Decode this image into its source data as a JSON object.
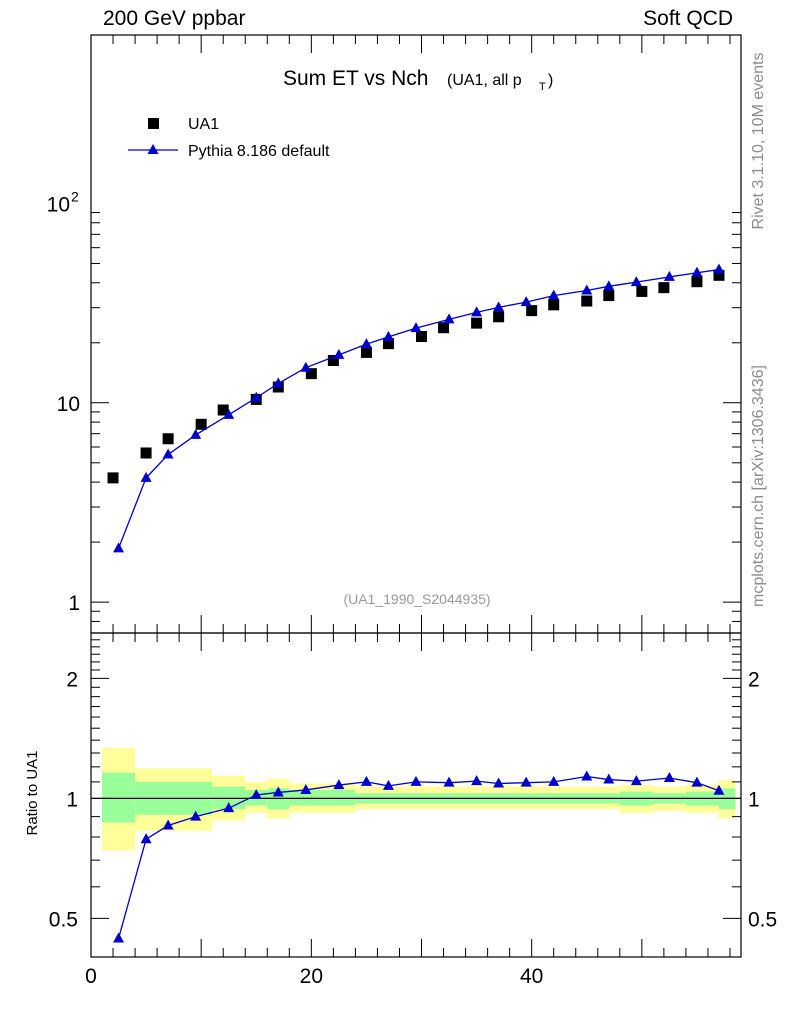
{
  "header": {
    "left": "200 GeV ppbar",
    "right": "Soft QCD"
  },
  "side_text": {
    "top": "Rivet 3.1.10,  10M events",
    "bottom": "mcplots.cern.ch [arXiv:1306.3436]"
  },
  "colors": {
    "data": "#000000",
    "mc": "#0000cc",
    "band_outer": "#ffff99",
    "band_inner": "#99ff99"
  },
  "chart_data": [
    {
      "type": "scatter",
      "title": "Sum ET vs Nch",
      "title_suffix_main": "(UA1, all p",
      "title_suffix_sub": "T",
      "title_suffix_end": ")",
      "annotation": "(UA1_1990_S2044935)",
      "yscale": "log",
      "xlim": [
        0,
        59
      ],
      "ylim": [
        0.7,
        700
      ],
      "y_tick_labels": [
        {
          "value": 1,
          "label": "1"
        },
        {
          "value": 10,
          "label": "10"
        },
        {
          "value": 100,
          "label": "10",
          "sup": "2"
        }
      ],
      "legend_position": "top-left",
      "series": [
        {
          "name": "UA1",
          "marker": "square",
          "x": [
            2,
            5,
            7,
            10,
            12,
            15,
            17,
            20,
            22,
            25,
            27,
            30,
            32,
            35,
            37,
            40,
            42,
            45,
            47,
            50,
            52,
            55,
            57
          ],
          "y": [
            4.2,
            5.6,
            6.6,
            7.8,
            9.2,
            10.4,
            12.0,
            14.0,
            16.3,
            17.9,
            19.8,
            21.5,
            23.8,
            25.1,
            27.0,
            29.0,
            31.0,
            32.4,
            34.5,
            36.2,
            37.8,
            40.5,
            43.6
          ]
        },
        {
          "name": "Pythia 8.186 default",
          "marker": "triangle",
          "x": [
            2.5,
            5,
            7,
            9.5,
            12.5,
            15,
            17,
            19.5,
            22.5,
            25,
            27,
            29.5,
            32.5,
            35,
            37,
            39.5,
            42,
            45,
            47,
            49.5,
            52.5,
            55,
            57
          ],
          "y": [
            1.86,
            4.2,
            5.5,
            6.9,
            8.7,
            10.6,
            12.5,
            15.0,
            17.4,
            19.7,
            21.4,
            23.7,
            26.2,
            28.4,
            30.1,
            32.0,
            34.5,
            36.6,
            38.4,
            40.3,
            42.8,
            44.9,
            46.6
          ]
        }
      ]
    },
    {
      "type": "line",
      "ylabel": "Ratio to UA1",
      "yscale": "log",
      "xlim": [
        0,
        59
      ],
      "ylim": [
        0.4,
        2.6
      ],
      "x_ticks": [
        0,
        20,
        40
      ],
      "y_tick_labels": [
        {
          "value": 0.5,
          "label": "0.5"
        },
        {
          "value": 1,
          "label": "1"
        },
        {
          "value": 2,
          "label": "2"
        }
      ],
      "bands": [
        {
          "x0": 1,
          "x1": 4,
          "outer": [
            0.74,
            1.34
          ],
          "inner": [
            0.87,
            1.16
          ]
        },
        {
          "x0": 4,
          "x1": 11,
          "outer": [
            0.83,
            1.19
          ],
          "inner": [
            0.91,
            1.1
          ]
        },
        {
          "x0": 11,
          "x1": 14,
          "outer": [
            0.88,
            1.14
          ],
          "inner": [
            0.94,
            1.07
          ]
        },
        {
          "x0": 14,
          "x1": 16,
          "outer": [
            0.92,
            1.1
          ],
          "inner": [
            0.96,
            1.05
          ]
        },
        {
          "x0": 16,
          "x1": 18,
          "outer": [
            0.89,
            1.12
          ],
          "inner": [
            0.94,
            1.06
          ]
        },
        {
          "x0": 18,
          "x1": 24,
          "outer": [
            0.92,
            1.09
          ],
          "inner": [
            0.96,
            1.05
          ]
        },
        {
          "x0": 24,
          "x1": 48,
          "outer": [
            0.94,
            1.07
          ],
          "inner": [
            0.97,
            1.03
          ]
        },
        {
          "x0": 48,
          "x1": 51,
          "outer": [
            0.92,
            1.08
          ],
          "inner": [
            0.96,
            1.04
          ]
        },
        {
          "x0": 51,
          "x1": 54,
          "outer": [
            0.93,
            1.07
          ],
          "inner": [
            0.97,
            1.03
          ]
        },
        {
          "x0": 54,
          "x1": 57,
          "outer": [
            0.92,
            1.08
          ],
          "inner": [
            0.96,
            1.04
          ]
        },
        {
          "x0": 57,
          "x1": 58.5,
          "outer": [
            0.89,
            1.11
          ],
          "inner": [
            0.94,
            1.06
          ]
        }
      ],
      "series": [
        {
          "name": "Pythia 8.186 default",
          "x": [
            2.5,
            5,
            7,
            9.5,
            12.5,
            15,
            17,
            19.5,
            22.5,
            25,
            27,
            29.5,
            32.5,
            35,
            37,
            39.5,
            42,
            45,
            47,
            49.5,
            52.5,
            55,
            57
          ],
          "y": [
            0.445,
            0.79,
            0.855,
            0.9,
            0.945,
            1.02,
            1.035,
            1.05,
            1.08,
            1.1,
            1.075,
            1.1,
            1.095,
            1.105,
            1.09,
            1.095,
            1.1,
            1.135,
            1.115,
            1.105,
            1.125,
            1.095,
            1.045
          ]
        }
      ]
    }
  ]
}
